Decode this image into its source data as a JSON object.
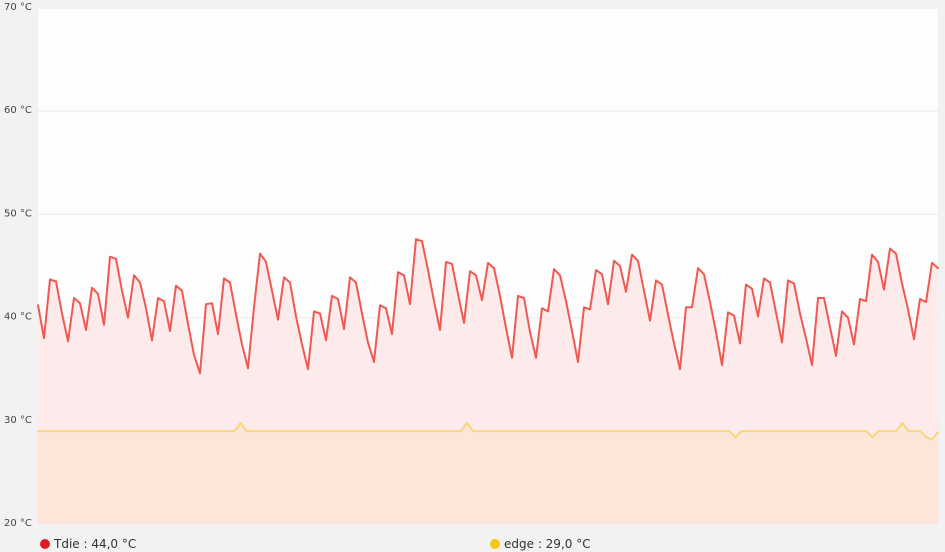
{
  "chart_data": {
    "type": "area",
    "ylim": [
      20,
      70
    ],
    "y_ticks": [
      {
        "value": 70,
        "label": "70 °C"
      },
      {
        "value": 60,
        "label": "60 °C"
      },
      {
        "value": 50,
        "label": "50 °C"
      },
      {
        "value": 40,
        "label": "40 °C"
      },
      {
        "value": 30,
        "label": "30 °C"
      },
      {
        "value": 20,
        "label": "20 °C"
      }
    ],
    "grid": true,
    "legend_position": "bottom",
    "series": [
      {
        "name": "Tdie",
        "legend_label": "Tdie : 44,0 °C",
        "color": "#ee5a52",
        "fill": "#fde7e7",
        "values": [
          41.2,
          38.0,
          43.7,
          43.5,
          40.4,
          37.7,
          41.9,
          41.4,
          38.8,
          42.9,
          42.3,
          39.3,
          45.9,
          45.7,
          42.6,
          40.0,
          44.1,
          43.4,
          40.9,
          37.8,
          41.9,
          41.6,
          38.7,
          43.1,
          42.6,
          39.4,
          36.4,
          34.6,
          41.3,
          41.4,
          38.4,
          43.8,
          43.4,
          40.3,
          37.4,
          35.1,
          41.0,
          46.2,
          45.4,
          42.6,
          39.8,
          43.9,
          43.4,
          40.1,
          37.4,
          35.0,
          40.6,
          40.4,
          37.8,
          42.1,
          41.8,
          38.9,
          43.9,
          43.4,
          40.4,
          37.6,
          35.7,
          41.2,
          40.9,
          38.4,
          44.4,
          44.1,
          41.3,
          47.6,
          47.4,
          44.6,
          41.6,
          38.8,
          45.4,
          45.2,
          42.3,
          39.5,
          44.5,
          44.1,
          41.7,
          45.3,
          44.8,
          42.1,
          39.0,
          36.1,
          42.1,
          41.9,
          38.6,
          36.1,
          40.9,
          40.6,
          44.7,
          44.1,
          41.6,
          38.7,
          35.7,
          41.0,
          40.8,
          44.6,
          44.2,
          41.3,
          45.5,
          45.0,
          42.5,
          46.1,
          45.5,
          42.6,
          39.7,
          43.6,
          43.2,
          40.3,
          37.5,
          35.0,
          41.0,
          41.0,
          44.8,
          44.2,
          41.5,
          38.6,
          35.4,
          40.5,
          40.2,
          37.5,
          43.2,
          42.8,
          40.1,
          43.8,
          43.4,
          40.5,
          37.6,
          43.6,
          43.3,
          40.4,
          38.0,
          35.4,
          41.9,
          41.9,
          39.1,
          36.3,
          40.6,
          40.0,
          37.4,
          41.8,
          41.6,
          46.1,
          45.4,
          42.7,
          46.7,
          46.2,
          43.3,
          40.8,
          37.9,
          41.8,
          41.5,
          45.3,
          44.8
        ]
      },
      {
        "name": "edge",
        "legend_label": "edge : 29,0 °C",
        "color": "#f9d77b",
        "fill": "#fbe5d6",
        "values": [
          29.0,
          29.0,
          29.0,
          29.0,
          29.0,
          29.0,
          29.0,
          29.0,
          29.0,
          29.0,
          29.0,
          29.0,
          29.0,
          29.0,
          29.0,
          29.0,
          29.0,
          29.0,
          29.0,
          29.0,
          29.0,
          29.0,
          29.0,
          29.0,
          29.0,
          29.0,
          29.0,
          29.0,
          29.0,
          29.0,
          29.0,
          29.0,
          29.0,
          29.0,
          29.8,
          29.0,
          29.0,
          29.0,
          29.0,
          29.0,
          29.0,
          29.0,
          29.0,
          29.0,
          29.0,
          29.0,
          29.0,
          29.0,
          29.0,
          29.0,
          29.0,
          29.0,
          29.0,
          29.0,
          29.0,
          29.0,
          29.0,
          29.0,
          29.0,
          29.0,
          29.0,
          29.0,
          29.0,
          29.0,
          29.0,
          29.0,
          29.0,
          29.0,
          29.0,
          29.0,
          29.0,
          29.0,
          29.8,
          29.0,
          29.0,
          29.0,
          29.0,
          29.0,
          29.0,
          29.0,
          29.0,
          29.0,
          29.0,
          29.0,
          29.0,
          29.0,
          29.0,
          29.0,
          29.0,
          29.0,
          29.0,
          29.0,
          29.0,
          29.0,
          29.0,
          29.0,
          29.0,
          29.0,
          29.0,
          29.0,
          29.0,
          29.0,
          29.0,
          29.0,
          29.0,
          29.0,
          29.0,
          29.0,
          29.0,
          29.0,
          29.0,
          29.0,
          29.0,
          29.0,
          29.0,
          29.0,
          29.0,
          28.4,
          29.0,
          29.0,
          29.0,
          29.0,
          29.0,
          29.0,
          29.0,
          29.0,
          29.0,
          29.0,
          29.0,
          29.0,
          29.0,
          29.0,
          29.0,
          29.0,
          29.0,
          29.0,
          29.0,
          29.0,
          29.0,
          29.0,
          28.4,
          29.0,
          29.0,
          29.0,
          29.0,
          29.8,
          29.0,
          29.0,
          29.0,
          28.4,
          28.2,
          28.9
        ]
      }
    ]
  }
}
